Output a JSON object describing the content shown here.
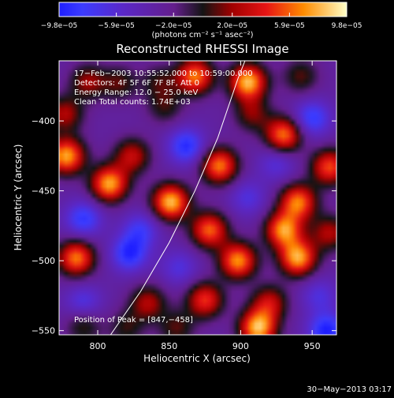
{
  "chart_data": {
    "type": "heatmap",
    "title": "Reconstructed RHESSI Image",
    "xlabel": "Heliocentric X (arcsec)",
    "ylabel": "Heliocentric Y (arcsec)",
    "xlim": [
      773,
      967
    ],
    "ylim": [
      -553,
      -357
    ],
    "x_ticks": [
      800,
      850,
      900,
      950
    ],
    "x_tick_labels": [
      "800",
      "850",
      "900",
      "950"
    ],
    "y_ticks": [
      -400,
      -450,
      -500,
      -550
    ],
    "y_tick_labels": [
      "−400",
      "−450",
      "−500",
      "−550"
    ],
    "colorbar": {
      "min": -9.8e-05,
      "max": 9.8e-05,
      "ticks": [
        -9.8e-05,
        -5.9e-05,
        -2e-05,
        2e-05,
        5.9e-05,
        9.8e-05
      ],
      "tick_labels": [
        "−9.8e−05",
        "−5.9e−05",
        "−2.0e−05",
        "2.0e−05",
        "5.9e−05",
        "9.8e−05"
      ],
      "units": "(photons cm⁻² s⁻¹ asec⁻²)"
    },
    "header": [
      "17−Feb−2003 10:55:52.000 to 10:59:00.000",
      "Detectors: 4F 5F 6F 7F 8F, Att 0",
      "Energy Range: 12.0 − 25.0 keV",
      "Clean    Total counts: 1.74E+03"
    ],
    "peak_label": "Position of Peak = [847,−458]",
    "peak": [
      847,
      -458
    ],
    "limb_curve": [
      [
        809,
        -553
      ],
      [
        830,
        -522
      ],
      [
        850,
        -487
      ],
      [
        868,
        -450
      ],
      [
        884,
        -412
      ],
      [
        898,
        -370
      ],
      [
        903,
        -357
      ]
    ],
    "sources": [
      {
        "x": 793,
        "y": -372,
        "v": 0.45
      },
      {
        "x": 815,
        "y": -373,
        "v": 0.35
      },
      {
        "x": 843,
        "y": -372,
        "v": 0.3
      },
      {
        "x": 868,
        "y": -368,
        "v": 0.85
      },
      {
        "x": 905,
        "y": -372,
        "v": 1.0
      },
      {
        "x": 942,
        "y": -368,
        "v": 0.35
      },
      {
        "x": 950,
        "y": -398,
        "v": -0.5
      },
      {
        "x": 777,
        "y": -395,
        "v": 0.5
      },
      {
        "x": 847,
        "y": -390,
        "v": 0.3
      },
      {
        "x": 908,
        "y": -395,
        "v": 0.4
      },
      {
        "x": 930,
        "y": -410,
        "v": 0.85
      },
      {
        "x": 778,
        "y": -425,
        "v": 0.95
      },
      {
        "x": 824,
        "y": -425,
        "v": 0.55
      },
      {
        "x": 862,
        "y": -418,
        "v": -0.55
      },
      {
        "x": 885,
        "y": -432,
        "v": 0.85
      },
      {
        "x": 925,
        "y": -430,
        "v": -0.3
      },
      {
        "x": 962,
        "y": -433,
        "v": 0.75
      },
      {
        "x": 808,
        "y": -445,
        "v": 0.95
      },
      {
        "x": 851,
        "y": -458,
        "v": 1.0
      },
      {
        "x": 905,
        "y": -455,
        "v": -0.3
      },
      {
        "x": 940,
        "y": -458,
        "v": 0.85
      },
      {
        "x": 790,
        "y": -470,
        "v": -0.5
      },
      {
        "x": 830,
        "y": -478,
        "v": -0.4
      },
      {
        "x": 878,
        "y": -478,
        "v": 0.8
      },
      {
        "x": 930,
        "y": -478,
        "v": 0.9
      },
      {
        "x": 962,
        "y": -480,
        "v": 0.5
      },
      {
        "x": 785,
        "y": -498,
        "v": 0.85
      },
      {
        "x": 822,
        "y": -495,
        "v": -0.55
      },
      {
        "x": 857,
        "y": -505,
        "v": -0.3
      },
      {
        "x": 898,
        "y": -500,
        "v": 0.9
      },
      {
        "x": 940,
        "y": -498,
        "v": 0.95
      },
      {
        "x": 875,
        "y": -528,
        "v": 0.7
      },
      {
        "x": 790,
        "y": -530,
        "v": -0.35
      },
      {
        "x": 835,
        "y": -530,
        "v": 0.5
      },
      {
        "x": 920,
        "y": -530,
        "v": 0.55
      },
      {
        "x": 955,
        "y": -525,
        "v": -0.3
      },
      {
        "x": 790,
        "y": -546,
        "v": 0.35
      },
      {
        "x": 820,
        "y": -548,
        "v": 0.3
      },
      {
        "x": 855,
        "y": -548,
        "v": 0.35
      },
      {
        "x": 912,
        "y": -548,
        "v": 1.0
      },
      {
        "x": 960,
        "y": -550,
        "v": -0.6
      }
    ],
    "grid": false,
    "colormap": "rainbow-blue-to-yellow"
  },
  "timestamp": "30−May−2013 03:17"
}
